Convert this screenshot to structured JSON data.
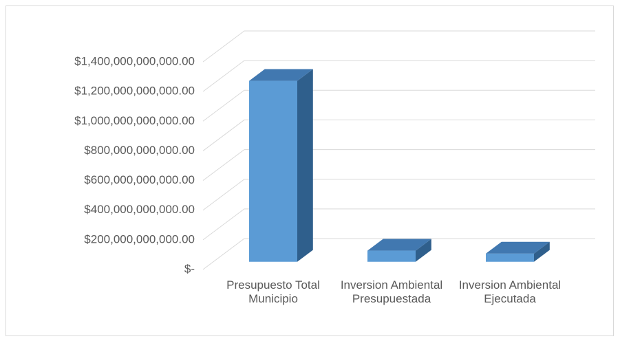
{
  "chart_data": {
    "type": "bar3d",
    "categories": [
      "Presupuesto Total Municipio",
      "Inversion Ambiental Presupuestada",
      "Inversion Ambiental Ejecutada"
    ],
    "values": [
      1220000000000,
      75000000000,
      55000000000
    ],
    "color": "#5b9bd5",
    "ylim": [
      0,
      1400000000000
    ],
    "yticks": [
      {
        "value": 0,
        "label": "$-"
      },
      {
        "value": 200000000000,
        "label": "$200,000,000,000.00"
      },
      {
        "value": 400000000000,
        "label": "$400,000,000,000.00"
      },
      {
        "value": 600000000000,
        "label": "$600,000,000,000.00"
      },
      {
        "value": 800000000000,
        "label": "$800,000,000,000.00"
      },
      {
        "value": 1000000000000,
        "label": "$1,000,000,000,000.00"
      },
      {
        "value": 1200000000000,
        "label": "$1,200,000,000,000.00"
      },
      {
        "value": 1400000000000,
        "label": "$1,400,000,000,000.00"
      }
    ],
    "grid": true
  }
}
